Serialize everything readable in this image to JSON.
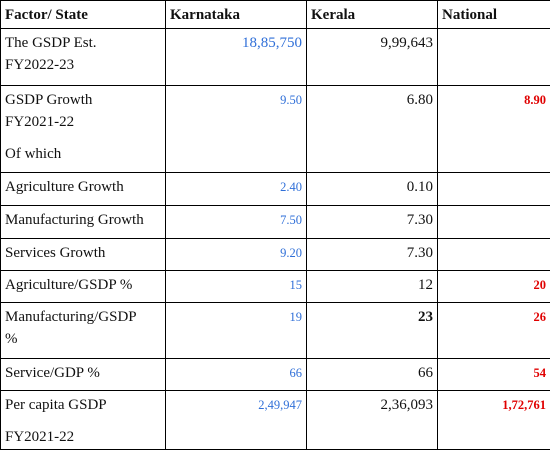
{
  "table": {
    "header": [
      "Factor/ State",
      "Karnataka",
      "Kerala",
      "National"
    ],
    "rows": [
      {
        "factor": [
          "The GSDP Est.",
          "FY2022-23"
        ],
        "karnataka": "18,85,750",
        "kerala": "9,99,643",
        "national": null
      },
      {
        "factor": [
          "GSDP Growth",
          "FY2021-22",
          "Of which"
        ],
        "karnataka": "9.50",
        "kerala": "6.80",
        "national": "8.90"
      },
      {
        "factor": [
          "Agriculture Growth"
        ],
        "karnataka": "2.40",
        "kerala": "0.10",
        "national": null
      },
      {
        "factor": [
          "Manufacturing Growth"
        ],
        "karnataka": "7.50",
        "kerala": "7.30",
        "national": null
      },
      {
        "factor": [
          "Services Growth"
        ],
        "karnataka": "9.20",
        "kerala": "7.30",
        "national": null
      },
      {
        "factor": [
          "Agriculture/GSDP %"
        ],
        "karnataka": "15",
        "kerala": "12",
        "national": "20"
      },
      {
        "factor": [
          "Manufacturing/GSDP",
          "%"
        ],
        "karnataka": "19",
        "kerala": "23",
        "national": "26"
      },
      {
        "factor": [
          "Service/GDP %"
        ],
        "karnataka": "66",
        "kerala": "66",
        "national": "54"
      },
      {
        "factor": [
          "Per capita GSDP",
          "FY2021-22"
        ],
        "karnataka": "2,49,947",
        "kerala": "2,36,093",
        "national": "1,72,761"
      }
    ]
  }
}
